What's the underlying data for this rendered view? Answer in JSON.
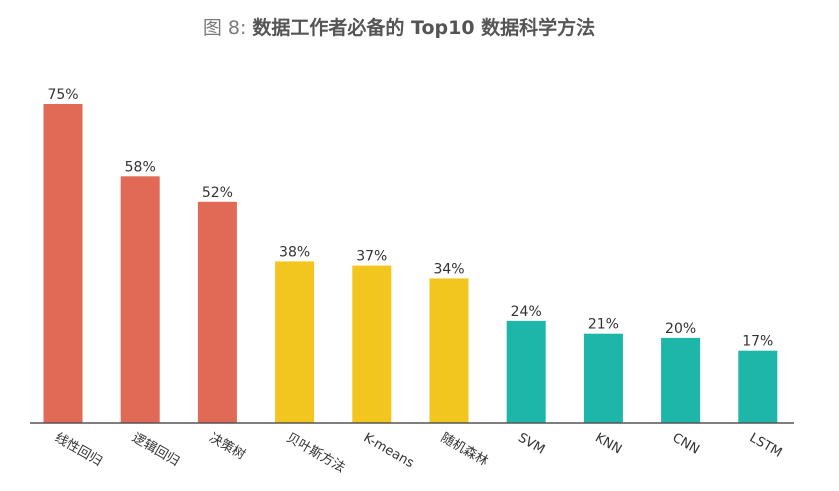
{
  "title": {
    "prefix": "图 8: ",
    "main": "数据工作者必备的 Top10 数据科学方法"
  },
  "colors": {
    "red": "#E06A55",
    "yellow": "#F2C61F",
    "teal": "#1DB6A8",
    "title_prefix": "#7a7a7a",
    "title_main": "#555555",
    "label": "#333333",
    "axis": "#555555"
  },
  "chart_data": {
    "type": "bar",
    "title": "图 8: 数据工作者必备的 Top10 数据科学方法",
    "categories": [
      "线性回归",
      "逻辑回归",
      "决策树",
      "贝叶斯方法",
      "K-means",
      "随机森林",
      "SVM",
      "KNN",
      "CNN",
      "LSTM"
    ],
    "values": [
      75,
      58,
      52,
      38,
      37,
      34,
      24,
      21,
      20,
      17
    ],
    "value_labels": [
      "75%",
      "58%",
      "52%",
      "38%",
      "37%",
      "34%",
      "24%",
      "21%",
      "20%",
      "17%"
    ],
    "bar_colors": [
      "#E06A55",
      "#E06A55",
      "#E06A55",
      "#F2C61F",
      "#F2C61F",
      "#F2C61F",
      "#1DB6A8",
      "#1DB6A8",
      "#1DB6A8",
      "#1DB6A8"
    ],
    "ylim": [
      0,
      75
    ],
    "xlabel": "",
    "ylabel": "",
    "grid": false,
    "legend": "none"
  }
}
